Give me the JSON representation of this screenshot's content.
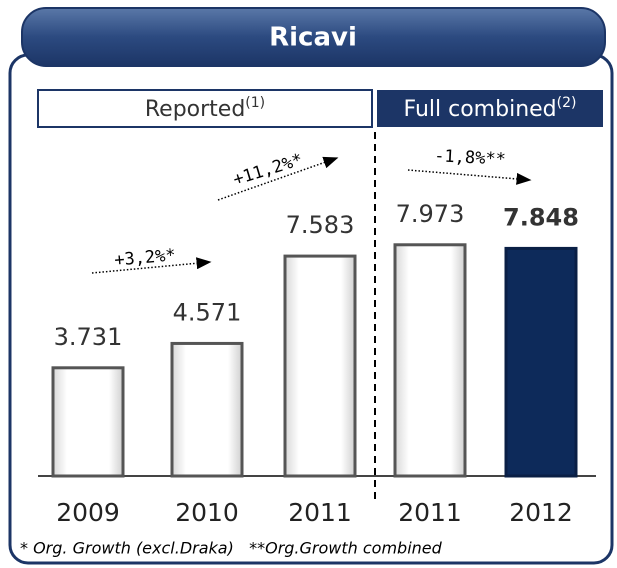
{
  "chart_data": {
    "type": "bar",
    "title": "Ricavi",
    "left_label": "Reported",
    "left_note": "(1)",
    "right_label": "Full combined",
    "right_note": "(2)",
    "categories": [
      "2009",
      "2010",
      "2011",
      "2011",
      "2012"
    ],
    "values": [
      3.731,
      4.571,
      7.583,
      7.973,
      7.848
    ],
    "colors": [
      "#ffffff",
      "#ffffff",
      "#ffffff",
      "#ffffff",
      "#0d2a5a"
    ],
    "annotations": [
      "+3,2%*",
      "+11,2%*",
      "-1,8%**"
    ],
    "footnote": "* Org. Growth (excl.Draka)   **Org.Growth combined"
  }
}
